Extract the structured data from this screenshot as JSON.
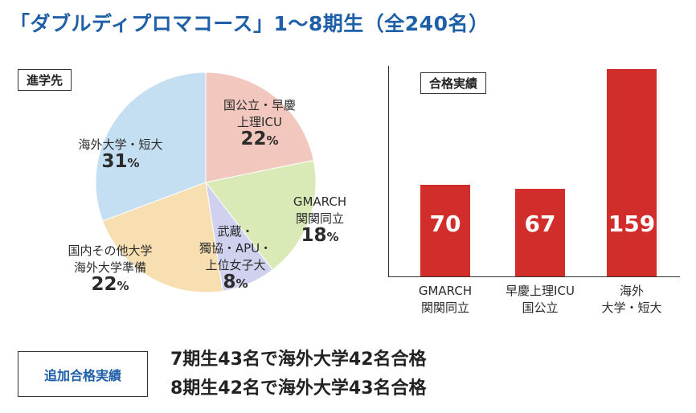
{
  "title": "「ダブルディプロマコース」1〜8期生（全240名）",
  "chart_data": [
    {
      "type": "pie",
      "title": "進学先",
      "unit": "%",
      "slices": [
        {
          "label_lines": [
            "国公立・早慶",
            "上理ICU"
          ],
          "value": 22,
          "color": "#f2c7bd"
        },
        {
          "label_lines": [
            "GMARCH",
            "関関同立"
          ],
          "value": 18,
          "color": "#d9eab7"
        },
        {
          "label_lines": [
            "武蔵・",
            "獨協・APU・",
            "上位女子大"
          ],
          "value": 8,
          "color": "#cfd1ee"
        },
        {
          "label_lines": [
            "国内その他大学",
            "海外大学準備"
          ],
          "value": 22,
          "color": "#f8dfb2"
        },
        {
          "label_lines": [
            "海外大学・短大"
          ],
          "value": 31,
          "color": "#c4def2"
        }
      ]
    },
    {
      "type": "bar",
      "title": "合格実績",
      "categories": [
        {
          "lines": [
            "GMARCH",
            "関関同立"
          ],
          "value": 70
        },
        {
          "lines": [
            "早慶上理ICU",
            "国公立"
          ],
          "value": 67
        },
        {
          "lines": [
            "海外",
            "大学・短大"
          ],
          "value": 159
        }
      ],
      "ylim": [
        0,
        159
      ],
      "bar_color": "#d12d2a",
      "grid": false
    }
  ],
  "extra": {
    "label": "追加合格実績",
    "lines": [
      "7期生43名で海外大学42名合格",
      "8期生42名で海外大学43名合格"
    ]
  }
}
